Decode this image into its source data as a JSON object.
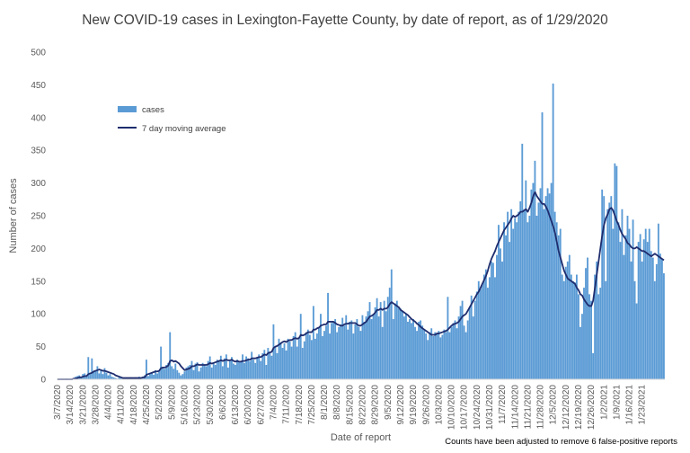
{
  "chart_data": {
    "type": "bar",
    "title": "New COVID-19 cases in Lexington-Fayette County, by date of report, as of 1/29/2020",
    "xlabel": "Date of report",
    "ylabel": "Number of cases",
    "ylim": [
      0,
      500
    ],
    "yticks": [
      0,
      50,
      100,
      150,
      200,
      250,
      300,
      350,
      400,
      450,
      500
    ],
    "xtick_labels": [
      "3/7/2020",
      "3/14/2020",
      "3/21/2020",
      "3/28/2020",
      "4/4/2020",
      "4/11/2020",
      "4/18/2020",
      "4/25/2020",
      "5/2/2020",
      "5/9/2020",
      "5/16/2020",
      "5/23/2020",
      "5/30/2020",
      "6/6/2020",
      "6/13/2020",
      "6/20/2020",
      "6/27/2020",
      "7/4/2020",
      "7/11/2020",
      "7/18/2020",
      "7/25/2020",
      "8/1/2020",
      "8/8/2020",
      "8/15/2020",
      "8/22/2020",
      "8/29/2020",
      "9/5/2020",
      "9/12/2020",
      "9/19/2020",
      "9/26/2020",
      "10/3/2020",
      "10/10/2020",
      "10/17/2020",
      "10/24/2020",
      "10/31/2020",
      "11/7/2020",
      "11/14/2020",
      "11/21/2020",
      "11/28/2020",
      "12/5/2020",
      "12/12/2020",
      "12/19/2020",
      "12/26/2020",
      "1/2/2021",
      "1/9/2021",
      "1/16/2021",
      "1/23/2021"
    ],
    "grid": false,
    "legend_position": "top-left",
    "series": [
      {
        "name": "cases",
        "kind": "bar",
        "color": "#5b9bd5",
        "values": [
          0,
          0,
          0,
          0,
          0,
          1,
          0,
          0,
          1,
          2,
          4,
          5,
          6,
          3,
          8,
          9,
          4,
          34,
          8,
          32,
          12,
          14,
          20,
          9,
          15,
          8,
          17,
          10,
          6,
          8,
          4,
          3,
          2,
          1,
          3,
          2,
          1,
          0,
          1,
          2,
          3,
          1,
          2,
          3,
          1,
          4,
          2,
          3,
          6,
          30,
          5,
          8,
          10,
          7,
          14,
          9,
          12,
          50,
          18,
          16,
          22,
          25,
          72,
          20,
          16,
          24,
          14,
          10,
          6,
          8,
          12,
          18,
          20,
          22,
          28,
          14,
          24,
          26,
          12,
          18,
          25,
          22,
          20,
          28,
          35,
          18,
          26,
          22,
          30,
          28,
          36,
          20,
          32,
          38,
          18,
          28,
          34,
          24,
          22,
          30,
          26,
          28,
          38,
          25,
          35,
          32,
          28,
          42,
          30,
          25,
          34,
          38,
          28,
          40,
          45,
          22,
          48,
          42,
          36,
          84,
          50,
          40,
          62,
          56,
          48,
          55,
          44,
          62,
          58,
          50,
          66,
          72,
          50,
          64,
          100,
          48,
          58,
          72,
          76,
          68,
          60,
          112,
          62,
          70,
          78,
          100,
          66,
          74,
          82,
          132,
          70,
          86,
          88,
          92,
          72,
          80,
          84,
          94,
          82,
          98,
          76,
          88,
          90,
          70,
          84,
          92,
          80,
          74,
          98,
          88,
          96,
          104,
          118,
          92,
          100,
          110,
          124,
          96,
          118,
          80,
          120,
          104,
          126,
          140,
          168,
          92,
          116,
          120,
          110,
          108,
          104,
          96,
          100,
          88,
          92,
          86,
          92,
          80,
          74,
          88,
          90,
          82,
          76,
          70,
          60,
          72,
          78,
          66,
          72,
          70,
          74,
          64,
          68,
          76,
          72,
          126,
          72,
          80,
          86,
          90,
          78,
          96,
          112,
          120,
          82,
          72,
          90,
          110,
          128,
          96,
          120,
          134,
          150,
          138,
          146,
          160,
          168,
          140,
          156,
          180,
          178,
          156,
          190,
          236,
          200,
          180,
          240,
          220,
          256,
          210,
          260,
          230,
          246,
          240,
          256,
          272,
          360,
          260,
          304,
          240,
          250,
          290,
          300,
          334,
          250,
          270,
          292,
          408,
          260,
          280,
          292,
          284,
          300,
          452,
          256,
          240,
          220,
          230,
          160,
          150,
          172,
          180,
          190,
          160,
          150,
          148,
          160,
          130,
          80,
          100,
          140,
          170,
          186,
          130,
          120,
          40,
          160,
          180,
          130,
          140,
          290,
          280,
          150,
          260,
          270,
          280,
          230,
          330,
          326,
          240,
          210,
          260,
          190,
          220,
          250,
          230,
          180,
          244,
          150,
          116,
          210,
          222,
          180,
          214,
          230,
          210,
          230,
          196,
          186,
          150,
          176,
          238,
          192,
          184,
          162
        ]
      },
      {
        "name": "7 day moving average",
        "kind": "line",
        "color": "#1f2d6e",
        "values": [
          0,
          0,
          0,
          0,
          0,
          0,
          0,
          0,
          0,
          1,
          1,
          2,
          3,
          3,
          4,
          5,
          5,
          8,
          9,
          10,
          12,
          13,
          14,
          15,
          14,
          13,
          13,
          12,
          11,
          10,
          9,
          8,
          6,
          5,
          4,
          3,
          2,
          2,
          2,
          2,
          2,
          2,
          2,
          2,
          2,
          2,
          2,
          3,
          3,
          7,
          8,
          9,
          10,
          11,
          12,
          12,
          13,
          17,
          18,
          18,
          19,
          21,
          28,
          29,
          27,
          28,
          26,
          24,
          20,
          17,
          14,
          15,
          16,
          17,
          20,
          20,
          21,
          23,
          22,
          22,
          22,
          22,
          22,
          23,
          25,
          24,
          25,
          26,
          27,
          28,
          29,
          28,
          29,
          30,
          29,
          29,
          30,
          28,
          27,
          28,
          27,
          27,
          28,
          28,
          29,
          30,
          30,
          32,
          32,
          32,
          33,
          34,
          34,
          36,
          38,
          37,
          40,
          41,
          42,
          48,
          50,
          51,
          53,
          55,
          57,
          58,
          57,
          59,
          60,
          60,
          62,
          63,
          62,
          63,
          68,
          67,
          68,
          70,
          72,
          72,
          72,
          76,
          76,
          78,
          79,
          82,
          83,
          84,
          84,
          88,
          88,
          88,
          88,
          86,
          84,
          83,
          82,
          82,
          84,
          85,
          85,
          86,
          86,
          86,
          86,
          84,
          82,
          82,
          84,
          86,
          88,
          92,
          96,
          97,
          99,
          102,
          106,
          106,
          108,
          106,
          108,
          108,
          110,
          115,
          118,
          116,
          114,
          112,
          110,
          106,
          104,
          102,
          100,
          98,
          95,
          92,
          90,
          88,
          85,
          83,
          80,
          78,
          76,
          74,
          72,
          70,
          68,
          68,
          68,
          70,
          70,
          71,
          72,
          73,
          74,
          76,
          79,
          82,
          84,
          85,
          86,
          88,
          92,
          96,
          98,
          100,
          105,
          110,
          115,
          120,
          125,
          130,
          134,
          140,
          146,
          152,
          158,
          166,
          176,
          184,
          190,
          196,
          204,
          210,
          216,
          222,
          228,
          232,
          236,
          240,
          246,
          250,
          248,
          250,
          252,
          256,
          256,
          258,
          260,
          256,
          262,
          270,
          280,
          286,
          280,
          276,
          272,
          268,
          268,
          264,
          258,
          250,
          242,
          234,
          224,
          210,
          196,
          186,
          176,
          166,
          160,
          154,
          152,
          150,
          148,
          146,
          140,
          136,
          130,
          128,
          122,
          118,
          114,
          112,
          112,
          120,
          140,
          160,
          180,
          200,
          220,
          236,
          246,
          252,
          260,
          262,
          258,
          250,
          242,
          236,
          228,
          222,
          218,
          214,
          208,
          206,
          202,
          200,
          200,
          202,
          200,
          198,
          196,
          196,
          194,
          192,
          190,
          188,
          190,
          192,
          190,
          188,
          186,
          184,
          182
        ]
      }
    ]
  },
  "footnote": "Counts have been adjusted to remove 6 false-positive reports"
}
